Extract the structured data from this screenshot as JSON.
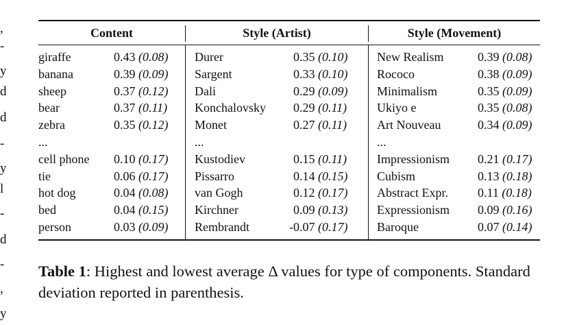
{
  "margin_fragments": [
    ",",
    "-",
    "y",
    "d",
    "d",
    "-",
    "y",
    "l",
    "-",
    "d",
    "-",
    ",",
    "y"
  ],
  "table": {
    "headers": [
      "Content",
      "Style (Artist)",
      "Style (Movement)"
    ],
    "columns": [
      {
        "rows": [
          {
            "name": "giraffe",
            "value": "0.43",
            "sd": "(0.08)"
          },
          {
            "name": "banana",
            "value": "0.39",
            "sd": "(0.09)"
          },
          {
            "name": "sheep",
            "value": "0.37",
            "sd": "(0.12)"
          },
          {
            "name": "bear",
            "value": "0.37",
            "sd": "(0.11)"
          },
          {
            "name": "zebra",
            "value": "0.35",
            "sd": "(0.12)"
          },
          {
            "name": "...",
            "value": "",
            "sd": ""
          },
          {
            "name": "cell phone",
            "value": "0.10",
            "sd": "(0.17)"
          },
          {
            "name": "tie",
            "value": "0.06",
            "sd": "(0.17)"
          },
          {
            "name": "hot dog",
            "value": "0.04",
            "sd": "(0.08)"
          },
          {
            "name": "bed",
            "value": "0.04",
            "sd": "(0.15)"
          },
          {
            "name": "person",
            "value": "0.03",
            "sd": "(0.09)"
          }
        ]
      },
      {
        "rows": [
          {
            "name": "Durer",
            "value": "0.35",
            "sd": "(0.10)"
          },
          {
            "name": "Sargent",
            "value": "0.33",
            "sd": "(0.10)"
          },
          {
            "name": "Dali",
            "value": "0.29",
            "sd": "(0.09)"
          },
          {
            "name": "Konchalovsky",
            "value": "0.29",
            "sd": "(0.11)"
          },
          {
            "name": "Monet",
            "value": "0.27",
            "sd": "(0.11)"
          },
          {
            "name": "...",
            "value": "",
            "sd": ""
          },
          {
            "name": "Kustodiev",
            "value": "0.15",
            "sd": "(0.11)"
          },
          {
            "name": "Pissarro",
            "value": "0.14",
            "sd": "(0.15)"
          },
          {
            "name": "van Gogh",
            "value": "0.12",
            "sd": "(0.17)"
          },
          {
            "name": "Kirchner",
            "value": "0.09",
            "sd": "(0.13)"
          },
          {
            "name": "Rembrandt",
            "value": "-0.07",
            "sd": "(0.17)"
          }
        ]
      },
      {
        "rows": [
          {
            "name": "New Realism",
            "value": "0.39",
            "sd": "(0.08)"
          },
          {
            "name": "Rococo",
            "value": "0.38",
            "sd": "(0.09)"
          },
          {
            "name": "Minimalism",
            "value": "0.35",
            "sd": "(0.09)"
          },
          {
            "name": "Ukiyo e",
            "value": "0.35",
            "sd": "(0.08)"
          },
          {
            "name": "Art Nouveau",
            "value": "0.34",
            "sd": "(0.09)"
          },
          {
            "name": "...",
            "value": "",
            "sd": ""
          },
          {
            "name": "Impressionism",
            "value": "0.21",
            "sd": "(0.17)"
          },
          {
            "name": "Cubism",
            "value": "0.13",
            "sd": "(0.18)"
          },
          {
            "name": "Abstract Expr.",
            "value": "0.11",
            "sd": "(0.18)"
          },
          {
            "name": "Expressionism",
            "value": "0.09",
            "sd": "(0.16)"
          },
          {
            "name": "Baroque",
            "value": "0.07",
            "sd": "(0.14)"
          }
        ]
      }
    ]
  },
  "caption": {
    "label": "Table 1",
    "text": ":  Highest and lowest average Δ values for type of components. Standard deviation reported in parenthesis."
  }
}
